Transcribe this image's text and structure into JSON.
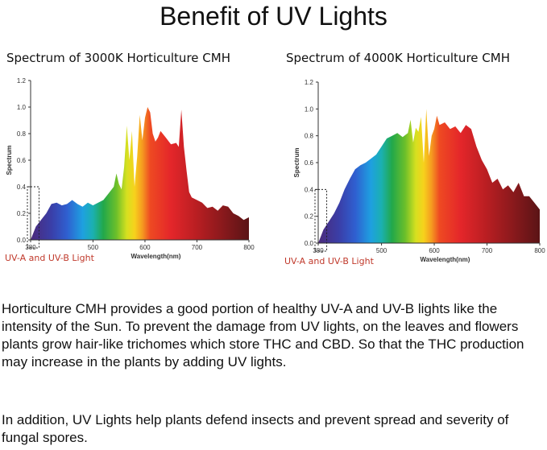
{
  "page": {
    "title": "Benefit of UV Lights",
    "paragraphs": [
      "Horticulture CMH provides a good portion of healthy UV-A and UV-B lights like the intensity of the Sun. To prevent the damage from UV lights, on the leaves and flowers plants grow hair-like trichomes which store THC and CBD. So that the THC production may increase in the plants by adding UV lights.",
      "In addition, UV Lights help plants defend insects and prevent spread and severity of fungal spores."
    ]
  },
  "chart_data": [
    {
      "type": "area",
      "title": "Spectrum of 3000K Horticulture CMH",
      "xlabel": "Wavelength(nm)",
      "ylabel": "Spectrum",
      "xlim": [
        380,
        800
      ],
      "ylim": [
        0,
        1.2
      ],
      "xticks": [
        "380",
        "500",
        "600",
        "700",
        "800"
      ],
      "yticks": [
        "0.0",
        "0.2",
        "0.4",
        "0.6",
        "0.8",
        "1.0",
        "1.2"
      ],
      "grid": false,
      "annotation": "UV-A and UV-B Light",
      "x": [
        380,
        390,
        400,
        410,
        420,
        430,
        440,
        450,
        460,
        470,
        480,
        490,
        500,
        510,
        520,
        530,
        540,
        545,
        550,
        555,
        560,
        565,
        570,
        575,
        580,
        585,
        590,
        595,
        600,
        605,
        610,
        615,
        620,
        625,
        630,
        640,
        650,
        660,
        665,
        670,
        675,
        680,
        685,
        690,
        700,
        710,
        720,
        730,
        740,
        750,
        760,
        770,
        780,
        790,
        800
      ],
      "values": [
        0.0,
        0.1,
        0.15,
        0.2,
        0.27,
        0.28,
        0.26,
        0.27,
        0.3,
        0.27,
        0.25,
        0.28,
        0.26,
        0.28,
        0.3,
        0.35,
        0.4,
        0.5,
        0.42,
        0.38,
        0.55,
        0.86,
        0.6,
        0.82,
        0.4,
        0.63,
        0.94,
        0.75,
        0.92,
        1.0,
        0.96,
        0.8,
        0.74,
        0.77,
        0.82,
        0.77,
        0.72,
        0.73,
        0.7,
        0.98,
        0.7,
        0.52,
        0.36,
        0.32,
        0.3,
        0.28,
        0.24,
        0.25,
        0.22,
        0.26,
        0.25,
        0.2,
        0.18,
        0.15,
        0.17
      ],
      "uv_box": [
        380,
        390
      ]
    },
    {
      "type": "area",
      "title": "Spectrum of 4000K Horticulture CMH",
      "xlabel": "Wavelength(nm)",
      "ylabel": "Spectrum",
      "xlim": [
        380,
        800
      ],
      "ylim": [
        0,
        1.2
      ],
      "xticks": [
        "380",
        "500",
        "600",
        "700",
        "800"
      ],
      "yticks": [
        "0.0",
        "0.2",
        "0.4",
        "0.6",
        "0.8",
        "1.0",
        "1.2"
      ],
      "grid": false,
      "annotation": "UV-A and UV-B Light",
      "x": [
        380,
        390,
        400,
        410,
        420,
        430,
        440,
        450,
        460,
        470,
        480,
        490,
        500,
        510,
        520,
        530,
        540,
        550,
        555,
        560,
        565,
        570,
        575,
        580,
        585,
        590,
        595,
        600,
        605,
        610,
        620,
        630,
        640,
        650,
        660,
        670,
        680,
        690,
        700,
        710,
        720,
        730,
        740,
        750,
        760,
        770,
        780,
        790,
        800
      ],
      "values": [
        0.0,
        0.1,
        0.16,
        0.22,
        0.3,
        0.4,
        0.48,
        0.55,
        0.58,
        0.6,
        0.63,
        0.66,
        0.72,
        0.78,
        0.8,
        0.82,
        0.79,
        0.82,
        0.92,
        0.75,
        0.86,
        0.83,
        0.94,
        0.6,
        1.0,
        0.65,
        0.8,
        0.85,
        0.95,
        0.88,
        0.9,
        0.85,
        0.87,
        0.82,
        0.88,
        0.85,
        0.72,
        0.62,
        0.55,
        0.45,
        0.48,
        0.4,
        0.43,
        0.38,
        0.45,
        0.35,
        0.35,
        0.3,
        0.25
      ],
      "uv_box": [
        380,
        390
      ]
    }
  ]
}
